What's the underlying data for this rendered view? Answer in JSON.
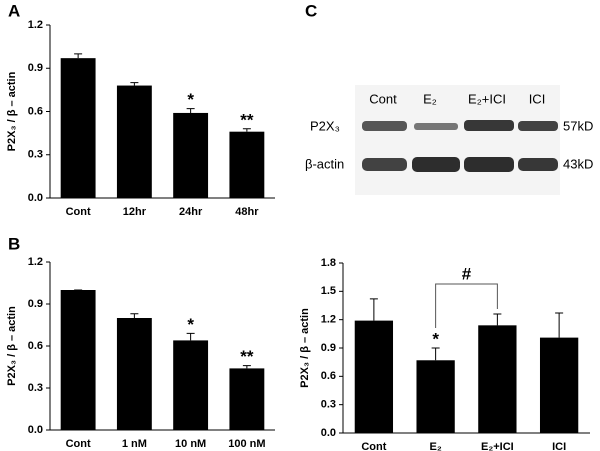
{
  "chart_data": [
    {
      "type": "bar",
      "panel": "A",
      "ylabel": "P2X₃ / β – actin",
      "categories": [
        "Cont",
        "12hr",
        "24hr",
        "48hr"
      ],
      "values": [
        0.97,
        0.78,
        0.59,
        0.46
      ],
      "errors": [
        0.03,
        0.02,
        0.03,
        0.02
      ],
      "color": "#000000",
      "ylim": [
        0,
        1.2
      ],
      "yticks": [
        {
          "value": 0,
          "label": "0.0"
        },
        0.3,
        0.6,
        0.9,
        1.2
      ],
      "annotations": [
        {
          "text": "*",
          "x": "24hr"
        },
        {
          "text": "**",
          "x": "48hr"
        }
      ]
    },
    {
      "type": "bar",
      "panel": "B",
      "ylabel": "P2X₃ / β – actin",
      "categories": [
        "Cont",
        "1 nM",
        "10 nM",
        "100 nM"
      ],
      "values": [
        1.0,
        0.8,
        0.64,
        0.44
      ],
      "errors": [
        0,
        0.03,
        0.05,
        0.02
      ],
      "color": "#000000",
      "ylim": [
        0,
        1.2
      ],
      "yticks": [
        {
          "value": 0,
          "label": "0.0"
        },
        0.3,
        0.6,
        0.9,
        1.2
      ],
      "annotations": [
        {
          "text": "*",
          "x": "10 nM"
        },
        {
          "text": "**",
          "x": "100 nM"
        }
      ]
    },
    {
      "type": "bar",
      "panel": "C",
      "ylabel": "P2X₃ / β – actin",
      "categories": [
        "Cont",
        "E₂",
        "E₂+ICI",
        "ICI"
      ],
      "values": [
        1.19,
        0.77,
        1.14,
        1.01
      ],
      "errors": [
        0.23,
        0.13,
        0.12,
        0.26
      ],
      "color": "#000000",
      "ylim": [
        0,
        1.8
      ],
      "yticks": [
        {
          "value": 0,
          "label": "0.0"
        },
        0.3,
        0.6,
        0.9,
        1.2,
        1.5,
        1.8
      ],
      "annotations": [
        {
          "text": "*",
          "x": "E₂"
        }
      ],
      "bracket": {
        "text": "#",
        "from": "E₂",
        "to": "E₂+ICI"
      }
    }
  ],
  "blot": {
    "lanes": [
      "Cont",
      "E₂",
      "E₂+ICI",
      "ICI"
    ],
    "rows": [
      "P2X₃",
      "β-actin"
    ],
    "sizes": [
      "57kD",
      "43kD"
    ]
  }
}
